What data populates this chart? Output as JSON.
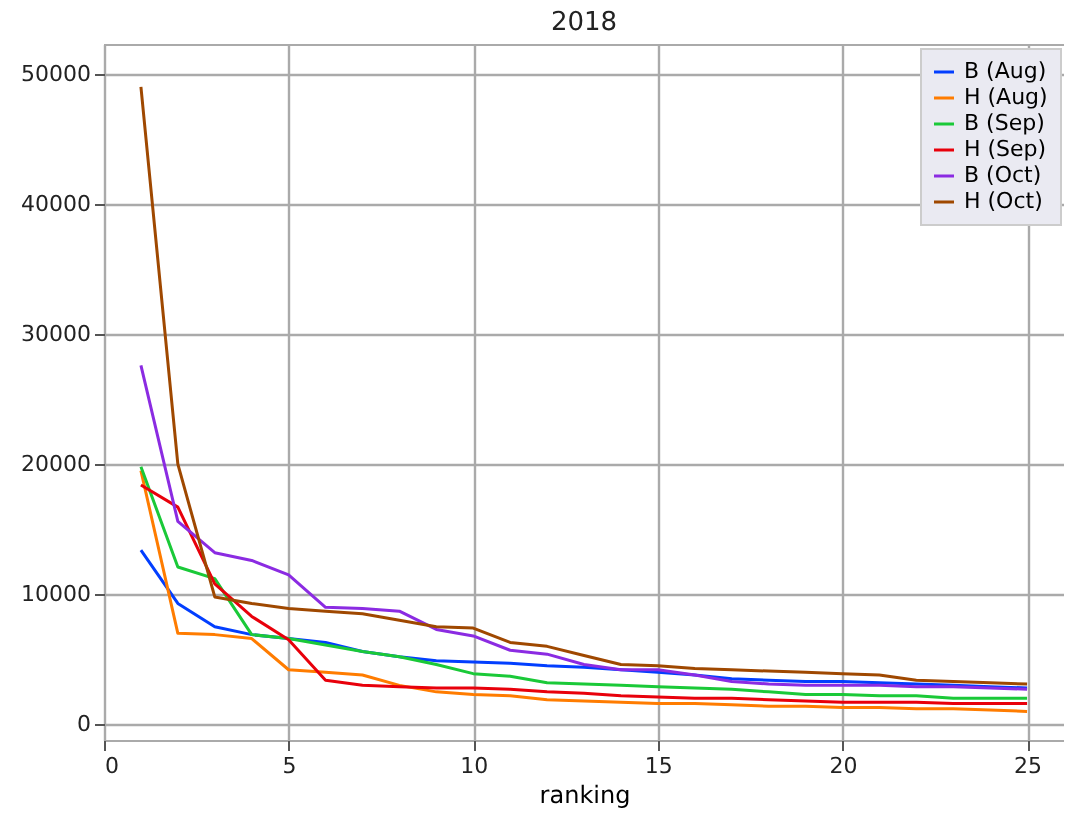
{
  "chart_data": {
    "type": "line",
    "title": "2018",
    "xlabel": "ranking",
    "x": [
      1,
      2,
      3,
      4,
      5,
      6,
      7,
      8,
      9,
      10,
      11,
      12,
      13,
      14,
      15,
      16,
      17,
      18,
      19,
      20,
      21,
      22,
      23,
      24,
      25
    ],
    "series": [
      {
        "name": "B (Aug)",
        "color": "#023eff",
        "values": [
          13400,
          9300,
          7500,
          6900,
          6600,
          6300,
          5600,
          5200,
          4900,
          4800,
          4700,
          4500,
          4400,
          4200,
          4000,
          3800,
          3500,
          3400,
          3300,
          3300,
          3200,
          3100,
          3000,
          2900,
          2800
        ]
      },
      {
        "name": "H (Aug)",
        "color": "#ff7c00",
        "values": [
          19500,
          7000,
          6900,
          6600,
          4200,
          4000,
          3800,
          3000,
          2500,
          2300,
          2200,
          1900,
          1800,
          1700,
          1600,
          1600,
          1500,
          1400,
          1400,
          1300,
          1300,
          1200,
          1200,
          1100,
          1000
        ]
      },
      {
        "name": "B (Sep)",
        "color": "#1ac938",
        "values": [
          19800,
          12100,
          11200,
          6900,
          6600,
          6100,
          5600,
          5200,
          4600,
          3900,
          3700,
          3200,
          3100,
          3000,
          2900,
          2800,
          2700,
          2500,
          2300,
          2300,
          2200,
          2200,
          2000,
          2000,
          2000
        ]
      },
      {
        "name": "H (Sep)",
        "color": "#e8000b",
        "values": [
          18400,
          16700,
          10800,
          8300,
          6500,
          3400,
          3000,
          2900,
          2800,
          2800,
          2700,
          2500,
          2400,
          2200,
          2100,
          2000,
          2000,
          1900,
          1800,
          1700,
          1700,
          1700,
          1600,
          1600,
          1600
        ]
      },
      {
        "name": "B (Oct)",
        "color": "#8b2be2",
        "values": [
          27600,
          15600,
          13200,
          12600,
          11500,
          9000,
          8900,
          8700,
          7300,
          6800,
          5700,
          5400,
          4600,
          4200,
          4200,
          3800,
          3300,
          3100,
          3000,
          3000,
          3000,
          2900,
          2900,
          2800,
          2700
        ]
      },
      {
        "name": "H (Oct)",
        "color": "#9f4800",
        "values": [
          49000,
          20000,
          9800,
          9300,
          8900,
          8700,
          8500,
          8000,
          7500,
          7400,
          6300,
          6000,
          5300,
          4600,
          4500,
          4300,
          4200,
          4100,
          4000,
          3900,
          3800,
          3400,
          3300,
          3200,
          3100
        ]
      }
    ],
    "xlim": [
      0,
      26
    ],
    "xticks": [
      0,
      5,
      10,
      15,
      20,
      25
    ],
    "ylim": [
      -1200,
      52300
    ],
    "yticks": [
      0,
      10000,
      20000,
      30000,
      40000,
      50000
    ],
    "grid": true,
    "legend": "top right",
    "marker": "none",
    "line_style": "solid"
  }
}
